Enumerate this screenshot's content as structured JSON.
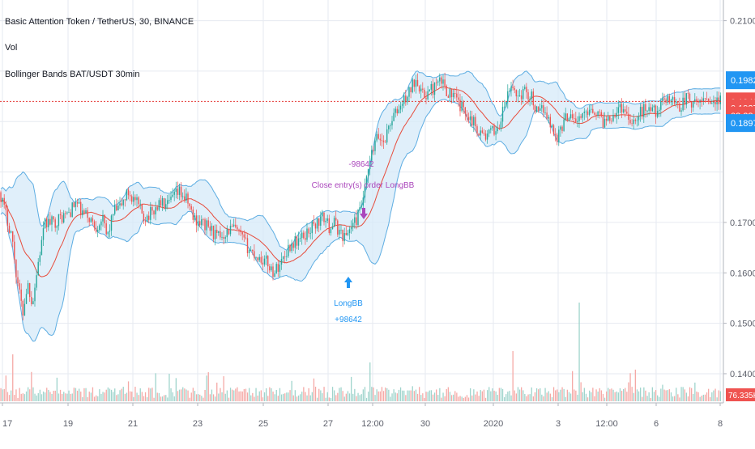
{
  "legend": {
    "symbol_line": "Basic Attention Token / TetherUS, 30, BINANCE",
    "volume_label": "Vol",
    "indicator_label": "Bollinger Bands BAT/USDT 30min"
  },
  "colors": {
    "band_fill": "#d6eaf8",
    "band_line": "#5dade2",
    "basis_line": "#e74c3c",
    "candle_up": "#26a69a",
    "candle_down": "#ef5350",
    "vol_up": "#9fd4cc",
    "vol_down": "#f5a9a6",
    "long_marker": "#2196f3",
    "close_marker": "#ab47bc",
    "price_line": "#e53935",
    "grid": "#e6eaf0",
    "axis_text": "#5d606b"
  },
  "price_axis": {
    "ticks": [
      "0.2100",
      "0.1700",
      "0.1600",
      "0.1500",
      "0.1400"
    ],
    "ticks_y": [
      0.21,
      0.17,
      0.16,
      0.15,
      0.14
    ]
  },
  "price_labels": [
    {
      "text": "0.1982",
      "value": 0.1982,
      "color": "#2196f3"
    },
    {
      "text": "0.1940",
      "value": 0.194,
      "color": "#ef5350"
    },
    {
      "text": "0.1927",
      "value": 0.1927,
      "color": "#ef5350"
    },
    {
      "text": "08:28",
      "value": 0.1912,
      "color": "#ef5350"
    },
    {
      "text": "0.1897",
      "value": 0.1897,
      "color": "#2196f3"
    }
  ],
  "volume_label_right": "76.335K",
  "time_axis": {
    "labels": [
      "17",
      "19",
      "21",
      "23",
      "25",
      "27",
      "12:00",
      "30",
      "2020",
      "3",
      "12:00",
      "6",
      "8"
    ]
  },
  "trades": {
    "entry_name": "LongBB",
    "entry_qty": "+98642",
    "exit_qty": "-98642",
    "exit_text": "Close entry(s) order LongBB"
  },
  "chart_data": {
    "type": "candlestick",
    "title": "Basic Attention Token / TetherUS, 30, BINANCE",
    "indicator": "Bollinger Bands BAT/USDT 30min",
    "y_range": [
      0.1355,
      0.2125
    ],
    "last_price": 0.194,
    "x_tick_labels": [
      "17",
      "19",
      "21",
      "23",
      "25",
      "27",
      "12:00",
      "30",
      "2020",
      "3",
      "12:00",
      "6",
      "8"
    ],
    "close_path": [
      [
        0,
        0.176
      ],
      [
        8,
        0.171
      ],
      [
        14,
        0.168
      ],
      [
        20,
        0.16
      ],
      [
        28,
        0.152
      ],
      [
        34,
        0.158
      ],
      [
        40,
        0.154
      ],
      [
        48,
        0.163
      ],
      [
        56,
        0.17
      ],
      [
        66,
        0.17
      ],
      [
        76,
        0.171
      ],
      [
        86,
        0.172
      ],
      [
        94,
        0.174
      ],
      [
        100,
        0.172
      ],
      [
        110,
        0.171
      ],
      [
        118,
        0.169
      ],
      [
        126,
        0.171
      ],
      [
        132,
        0.167
      ],
      [
        140,
        0.172
      ],
      [
        148,
        0.173
      ],
      [
        158,
        0.176
      ],
      [
        168,
        0.174
      ],
      [
        178,
        0.171
      ],
      [
        188,
        0.172
      ],
      [
        198,
        0.174
      ],
      [
        206,
        0.173
      ],
      [
        214,
        0.175
      ],
      [
        222,
        0.176
      ],
      [
        232,
        0.174
      ],
      [
        238,
        0.171
      ],
      [
        248,
        0.17
      ],
      [
        258,
        0.169
      ],
      [
        268,
        0.167
      ],
      [
        278,
        0.168
      ],
      [
        288,
        0.169
      ],
      [
        298,
        0.167
      ],
      [
        306,
        0.165
      ],
      [
        312,
        0.164
      ],
      [
        320,
        0.163
      ],
      [
        330,
        0.162
      ],
      [
        338,
        0.16
      ],
      [
        346,
        0.162
      ],
      [
        356,
        0.165
      ],
      [
        362,
        0.166
      ],
      [
        374,
        0.167
      ],
      [
        384,
        0.169
      ],
      [
        392,
        0.17
      ],
      [
        400,
        0.171
      ],
      [
        406,
        0.169
      ],
      [
        412,
        0.17
      ],
      [
        420,
        0.168
      ],
      [
        426,
        0.167
      ],
      [
        432,
        0.169
      ],
      [
        438,
        0.17
      ],
      [
        444,
        0.172
      ],
      [
        450,
        0.176
      ],
      [
        458,
        0.183
      ],
      [
        466,
        0.187
      ],
      [
        474,
        0.186
      ],
      [
        482,
        0.19
      ],
      [
        490,
        0.192
      ],
      [
        498,
        0.194
      ],
      [
        506,
        0.196
      ],
      [
        514,
        0.199
      ],
      [
        522,
        0.195
      ],
      [
        530,
        0.196
      ],
      [
        538,
        0.197
      ],
      [
        546,
        0.198
      ],
      [
        552,
        0.196
      ],
      [
        560,
        0.195
      ],
      [
        568,
        0.193
      ],
      [
        576,
        0.192
      ],
      [
        584,
        0.19
      ],
      [
        592,
        0.188
      ],
      [
        600,
        0.187
      ],
      [
        608,
        0.188
      ],
      [
        616,
        0.189
      ],
      [
        624,
        0.194
      ],
      [
        632,
        0.197
      ],
      [
        640,
        0.195
      ],
      [
        648,
        0.196
      ],
      [
        656,
        0.195
      ],
      [
        664,
        0.191
      ],
      [
        672,
        0.193
      ],
      [
        680,
        0.189
      ],
      [
        688,
        0.187
      ],
      [
        696,
        0.19
      ],
      [
        704,
        0.192
      ],
      [
        712,
        0.19
      ],
      [
        720,
        0.191
      ],
      [
        728,
        0.193
      ],
      [
        736,
        0.192
      ],
      [
        744,
        0.19
      ],
      [
        752,
        0.191
      ],
      [
        760,
        0.192
      ],
      [
        768,
        0.193
      ],
      [
        776,
        0.191
      ],
      [
        784,
        0.19
      ],
      [
        792,
        0.192
      ],
      [
        800,
        0.193
      ],
      [
        808,
        0.192
      ],
      [
        816,
        0.193
      ],
      [
        824,
        0.195
      ],
      [
        832,
        0.194
      ],
      [
        840,
        0.193
      ],
      [
        848,
        0.195
      ],
      [
        856,
        0.193
      ],
      [
        864,
        0.194
      ],
      [
        872,
        0.195
      ],
      [
        880,
        0.194
      ],
      [
        888,
        0.194
      ]
    ]
  }
}
